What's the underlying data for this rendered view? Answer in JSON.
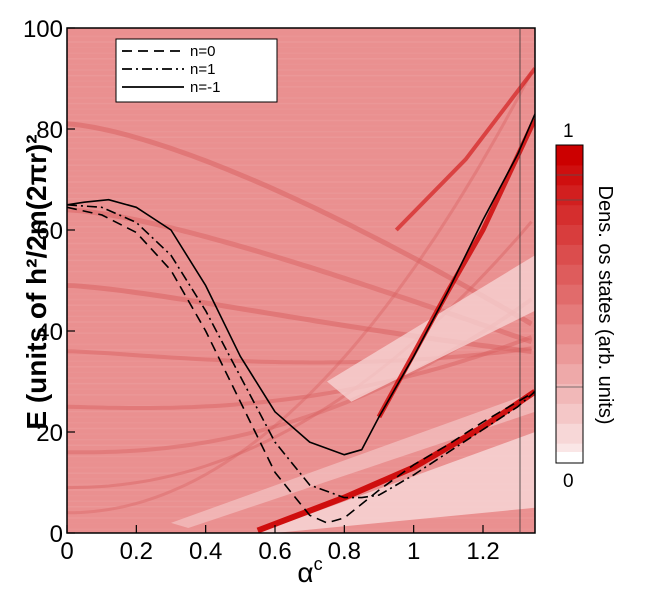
{
  "chart_data": {
    "type": "line",
    "xlabel": "α",
    "xlabel_sup": "c",
    "ylabel": "E (units of h²/2m(2πr)²",
    "xlim": [
      0,
      1.35
    ],
    "ylim": [
      0,
      100
    ],
    "x_ticks": [
      0,
      0.2,
      0.4,
      0.6,
      0.8,
      1,
      1.2
    ],
    "x_tick_labels": [
      "0",
      "0.2",
      "0.4",
      "0.6",
      "0.8",
      "1",
      "1.2"
    ],
    "y_ticks": [
      0,
      20,
      40,
      60,
      80,
      100
    ],
    "y_tick_labels": [
      "0",
      "20",
      "40",
      "60",
      "80",
      "100"
    ],
    "legend_position": "top-left",
    "series": [
      {
        "name": "n=0",
        "dash": "dashed",
        "x": [
          0,
          0.1,
          0.2,
          0.3,
          0.4,
          0.5,
          0.6,
          0.7,
          0.75,
          0.8,
          0.9,
          1.0,
          1.1,
          1.2,
          1.3,
          1.35
        ],
        "y": [
          64.5,
          63,
          59.5,
          52,
          40,
          26,
          12,
          3.5,
          2,
          3,
          8.5,
          13.5,
          17.5,
          22,
          26,
          28
        ]
      },
      {
        "name": "n=1",
        "dash": "dashdot",
        "x": [
          0,
          0.1,
          0.2,
          0.3,
          0.4,
          0.5,
          0.6,
          0.7,
          0.8,
          0.85,
          0.9,
          1.0,
          1.1,
          1.2,
          1.3,
          1.35
        ],
        "y": [
          65,
          64.5,
          61.5,
          55,
          44,
          31,
          18,
          9.5,
          7,
          7,
          7.5,
          11.5,
          16,
          20.5,
          25,
          28
        ]
      },
      {
        "name": "n=-1",
        "dash": "solid",
        "x": [
          0,
          0.05,
          0.12,
          0.2,
          0.3,
          0.4,
          0.5,
          0.6,
          0.7,
          0.8,
          0.85,
          0.9,
          1.0,
          1.1,
          1.2,
          1.3,
          1.35
        ],
        "y": [
          65,
          65.5,
          66,
          64.5,
          60,
          49,
          35,
          24,
          18,
          15.5,
          16.5,
          23,
          35,
          48,
          62,
          75,
          83
        ]
      }
    ],
    "colorbar": {
      "title": "Dens. os states (arb. units)",
      "min_label": "0",
      "max_label": "1",
      "min_color": "#ffffff",
      "max_color": "#cc0000"
    },
    "dos_background": {
      "base_color": "#ea9090",
      "band_color": "#d96262",
      "strong_color": "#cc0000",
      "light_color": "#f6d2d2"
    }
  }
}
